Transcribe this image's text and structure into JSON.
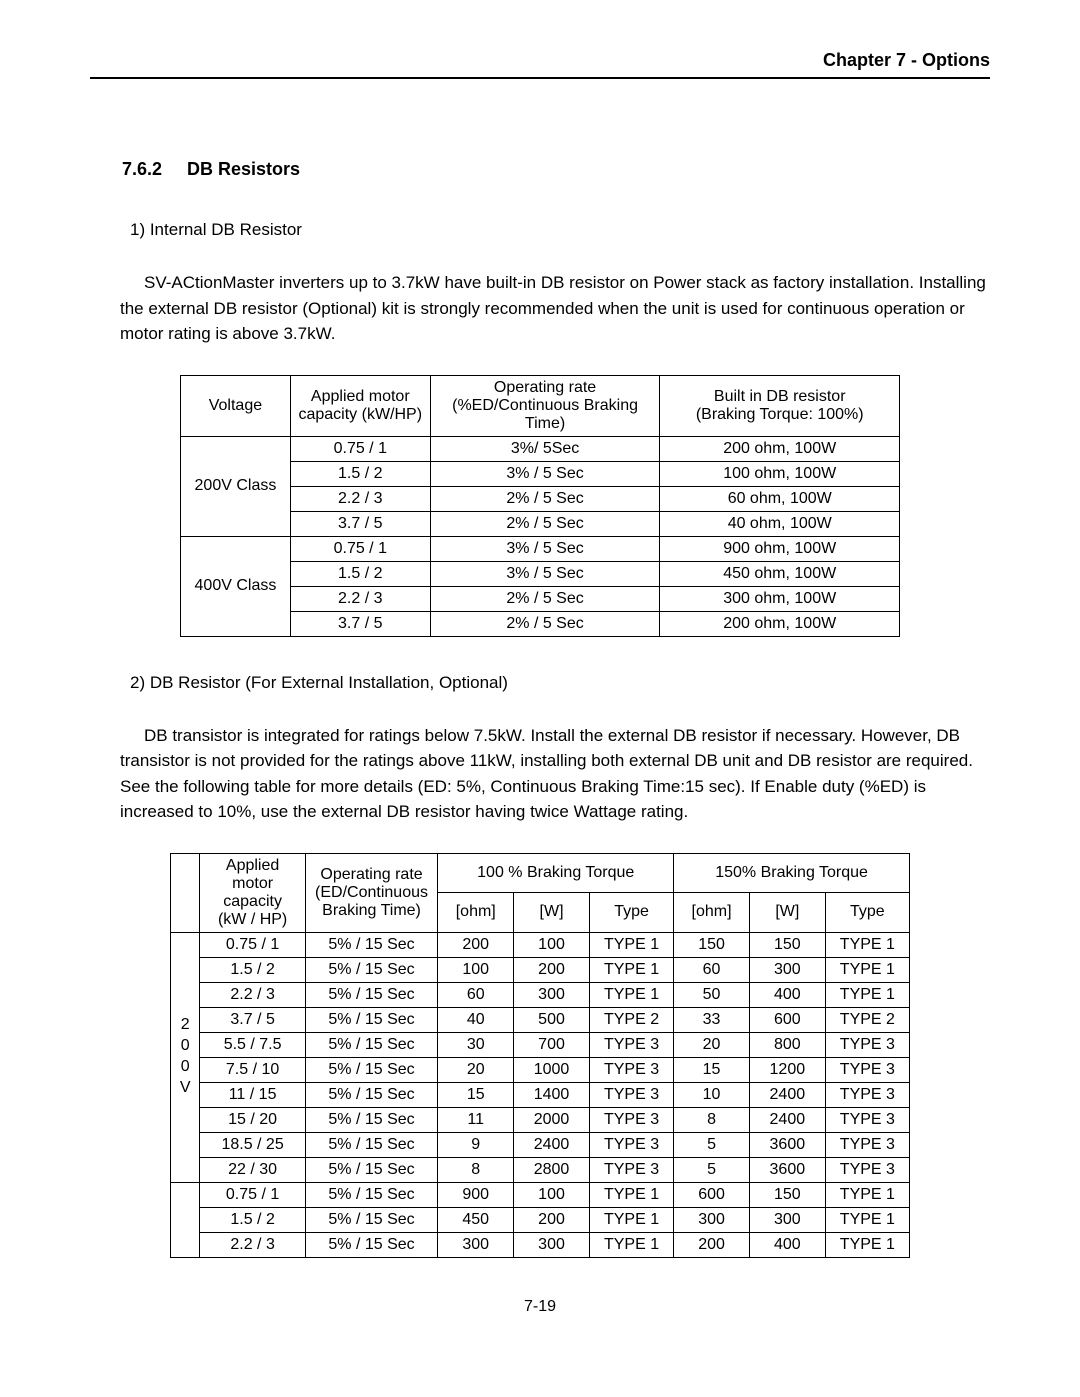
{
  "header": {
    "title": "Chapter 7 - Options"
  },
  "section": {
    "number": "7.6.2",
    "title": "DB Resistors"
  },
  "sub1": {
    "heading": "1)   Internal DB Resistor",
    "para": "SV-ACtionMaster inverters up to 3.7kW have built-in DB resistor on Power stack as factory installation. Installing the external DB resistor (Optional) kit is strongly recommended when the unit is used for continuous operation or motor rating is above 3.7kW."
  },
  "table1": {
    "headers": {
      "voltage": "Voltage",
      "cap_l1": "Applied motor",
      "cap_l2": "capacity (kW/HP)",
      "op_l1": "Operating rate",
      "op_l2": "(%ED/Continuous Braking Time)",
      "res_l1": "Built in DB resistor",
      "res_l2": "(Braking Torque: 100%)"
    },
    "groups": [
      {
        "voltage": "200V Class",
        "rows": [
          {
            "cap": "0.75 / 1",
            "op": "3%/ 5Sec",
            "res": "200 ohm, 100W"
          },
          {
            "cap": "1.5 / 2",
            "op": "3% / 5 Sec",
            "res": "100 ohm, 100W"
          },
          {
            "cap": "2.2 / 3",
            "op": "2% / 5 Sec",
            "res": "60 ohm, 100W"
          },
          {
            "cap": "3.7 / 5",
            "op": "2% / 5 Sec",
            "res": "40 ohm, 100W"
          }
        ]
      },
      {
        "voltage": "400V Class",
        "rows": [
          {
            "cap": "0.75 / 1",
            "op": "3% / 5 Sec",
            "res": "900 ohm, 100W"
          },
          {
            "cap": "1.5 / 2",
            "op": "3% / 5 Sec",
            "res": "450 ohm, 100W"
          },
          {
            "cap": "2.2 / 3",
            "op": "2% / 5 Sec",
            "res": "300 ohm, 100W"
          },
          {
            "cap": "3.7 / 5",
            "op": "2% / 5 Sec",
            "res": "200 ohm, 100W"
          }
        ]
      }
    ]
  },
  "sub2": {
    "heading": "2)   DB Resistor (For External Installation, Optional)",
    "para": "DB transistor is integrated for ratings below 7.5kW. Install the external DB resistor if necessary. However, DB transistor is not provided for the ratings above 11kW, installing both external DB unit and DB resistor are required. See the following table for more details (ED: 5%, Continuous Braking Time:15 sec). If Enable duty (%ED) is increased to 10%, use the external DB resistor having twice Wattage rating."
  },
  "table2": {
    "headers": {
      "cap_l1": "Applied motor",
      "cap_l2": "capacity",
      "cap_l3": "(kW / HP)",
      "op_l1": "Operating rate",
      "op_l2": "(ED/Continuous",
      "op_l3": "Braking Time)",
      "grp100": "100 % Braking Torque",
      "grp150": "150% Braking Torque",
      "ohm": "[ohm]",
      "w": "[W]",
      "type": "Type"
    },
    "groups": [
      {
        "vclass": "2 0 0 V",
        "rows": [
          {
            "cap": "0.75 / 1",
            "op": "5% / 15 Sec",
            "o1": "200",
            "w1": "100",
            "t1": "TYPE 1",
            "o2": "150",
            "w2": "150",
            "t2": "TYPE 1"
          },
          {
            "cap": "1.5 / 2",
            "op": "5% / 15 Sec",
            "o1": "100",
            "w1": "200",
            "t1": "TYPE 1",
            "o2": "60",
            "w2": "300",
            "t2": "TYPE 1"
          },
          {
            "cap": "2.2 / 3",
            "op": "5% / 15 Sec",
            "o1": "60",
            "w1": "300",
            "t1": "TYPE 1",
            "o2": "50",
            "w2": "400",
            "t2": "TYPE 1"
          },
          {
            "cap": "3.7 / 5",
            "op": "5% / 15 Sec",
            "o1": "40",
            "w1": "500",
            "t1": "TYPE 2",
            "o2": "33",
            "w2": "600",
            "t2": "TYPE 2"
          },
          {
            "cap": "5.5 / 7.5",
            "op": "5% / 15 Sec",
            "o1": "30",
            "w1": "700",
            "t1": "TYPE 3",
            "o2": "20",
            "w2": "800",
            "t2": "TYPE 3"
          },
          {
            "cap": "7.5  / 10",
            "op": "5% / 15 Sec",
            "o1": "20",
            "w1": "1000",
            "t1": "TYPE 3",
            "o2": "15",
            "w2": "1200",
            "t2": "TYPE 3"
          },
          {
            "cap": "11 / 15",
            "op": "5% / 15 Sec",
            "o1": "15",
            "w1": "1400",
            "t1": "TYPE 3",
            "o2": "10",
            "w2": "2400",
            "t2": "TYPE 3"
          },
          {
            "cap": "15 / 20",
            "op": "5% / 15 Sec",
            "o1": "11",
            "w1": "2000",
            "t1": "TYPE 3",
            "o2": "8",
            "w2": "2400",
            "t2": "TYPE 3"
          },
          {
            "cap": "18.5 / 25",
            "op": "5% / 15 Sec",
            "o1": "9",
            "w1": "2400",
            "t1": "TYPE 3",
            "o2": "5",
            "w2": "3600",
            "t2": "TYPE 3"
          },
          {
            "cap": "22 / 30",
            "op": "5% / 15 Sec",
            "o1": "8",
            "w1": "2800",
            "t1": "TYPE 3",
            "o2": "5",
            "w2": "3600",
            "t2": "TYPE 3"
          }
        ]
      },
      {
        "vclass": "",
        "rows": [
          {
            "cap": "0.75 / 1",
            "op": "5% / 15 Sec",
            "o1": "900",
            "w1": "100",
            "t1": "TYPE 1",
            "o2": "600",
            "w2": "150",
            "t2": "TYPE 1"
          },
          {
            "cap": "1.5 / 2",
            "op": "5% / 15 Sec",
            "o1": "450",
            "w1": "200",
            "t1": "TYPE 1",
            "o2": "300",
            "w2": "300",
            "t2": "TYPE 1"
          },
          {
            "cap": "2.2 / 3",
            "op": "5% / 15 Sec",
            "o1": "300",
            "w1": "300",
            "t1": "TYPE 1",
            "o2": "200",
            "w2": "400",
            "t2": "TYPE 1"
          }
        ]
      }
    ]
  },
  "footer": {
    "page": "7-19"
  }
}
